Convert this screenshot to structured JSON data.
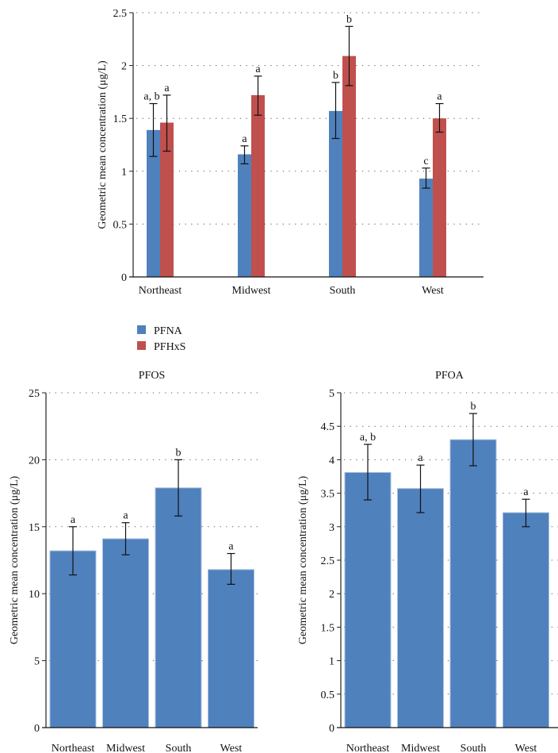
{
  "chart_data": [
    {
      "type": "bar",
      "title": "",
      "xlabel": "",
      "ylabel": "Geometric mean concentration (μg/L)",
      "ylim": [
        0,
        2.5
      ],
      "yticks": [
        "0",
        "0.5",
        "1",
        "1.5",
        "2",
        "2.5"
      ],
      "grid": "horizontal-dotted",
      "categories": [
        "Northeast",
        "Midwest",
        "South",
        "West"
      ],
      "legend_position": "bottom-left",
      "series": [
        {
          "name": "PFNA",
          "color": "#4f81bd",
          "values": [
            1.39,
            1.16,
            1.57,
            0.93
          ],
          "error_low": [
            1.14,
            1.07,
            1.31,
            0.84
          ],
          "error_high": [
            1.64,
            1.24,
            1.84,
            1.03
          ],
          "annotations": [
            "a, b",
            "a",
            "b",
            "c"
          ]
        },
        {
          "name": "PFHxS",
          "color": "#c0504d",
          "values": [
            1.46,
            1.72,
            2.09,
            1.5
          ],
          "error_low": [
            1.19,
            1.53,
            1.81,
            1.37
          ],
          "error_high": [
            1.72,
            1.9,
            2.37,
            1.64
          ],
          "annotations": [
            "a",
            "a",
            "b",
            "a"
          ]
        }
      ]
    },
    {
      "type": "bar",
      "title": "PFOS",
      "xlabel": "",
      "ylabel": "Geometric mean concentration (μg/L)",
      "ylim": [
        0,
        25
      ],
      "yticks": [
        "0",
        "5",
        "10",
        "15",
        "20",
        "25"
      ],
      "grid": "horizontal-dotted",
      "categories": [
        "Northeast",
        "Midwest",
        "South",
        "West"
      ],
      "series": [
        {
          "name": "PFOS",
          "color": "#4f81bd",
          "values": [
            13.2,
            14.1,
            17.9,
            11.8
          ],
          "error_low": [
            11.4,
            12.9,
            15.8,
            10.7
          ],
          "error_high": [
            15.0,
            15.3,
            20.0,
            13.0
          ],
          "annotations": [
            "a",
            "a",
            "b",
            "a"
          ]
        }
      ]
    },
    {
      "type": "bar",
      "title": "PFOA",
      "xlabel": "",
      "ylabel": "Geometric mean concentration (μg/L)",
      "ylim": [
        0,
        5
      ],
      "yticks": [
        "0",
        "0.5",
        "1",
        "1.5",
        "2",
        "2.5",
        "3",
        "3.5",
        "4",
        "4.5",
        "5"
      ],
      "grid": "horizontal-dotted",
      "categories": [
        "Northeast",
        "Midwest",
        "South",
        "West"
      ],
      "series": [
        {
          "name": "PFOA",
          "color": "#4f81bd",
          "values": [
            3.81,
            3.57,
            4.3,
            3.21
          ],
          "error_low": [
            3.4,
            3.21,
            3.91,
            3.0
          ],
          "error_high": [
            4.23,
            3.92,
            4.69,
            3.41
          ],
          "annotations": [
            "a, b",
            "a",
            "b",
            "a"
          ]
        }
      ]
    }
  ]
}
